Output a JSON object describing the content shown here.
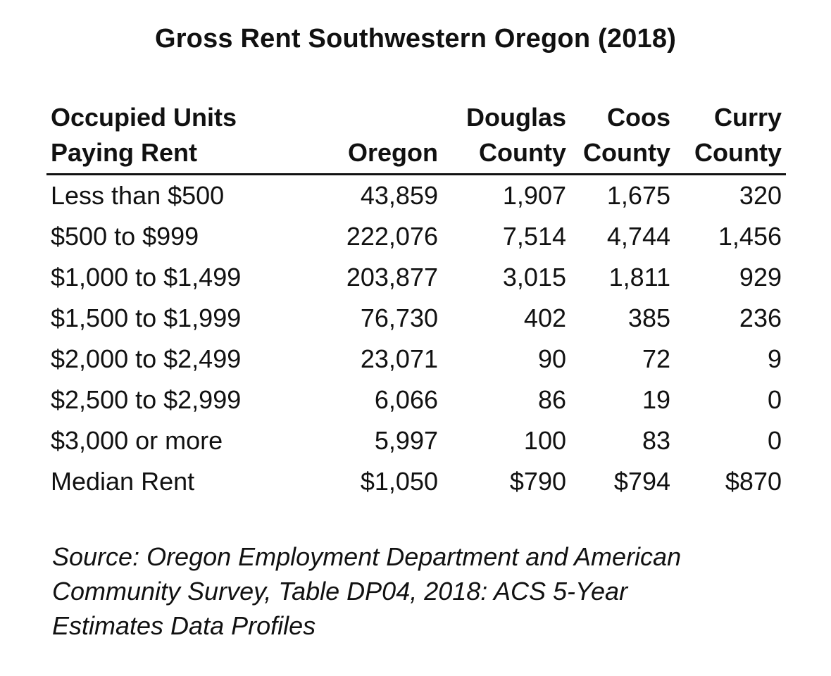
{
  "title": "Gross Rent Southwestern Oregon (2018)",
  "chart_data": {
    "type": "table",
    "title": "Gross Rent Southwestern Oregon (2018)",
    "header": [
      {
        "line1": "Occupied Units",
        "line2": "Paying Rent"
      },
      {
        "line1": "",
        "line2": "Oregon"
      },
      {
        "line1": "Douglas",
        "line2": "County"
      },
      {
        "line1": "Coos",
        "line2": "County"
      },
      {
        "line1": "Curry",
        "line2": "County"
      }
    ],
    "rows": [
      {
        "label": "Less than $500",
        "values": [
          "43,859",
          "1,907",
          "1,675",
          "320"
        ]
      },
      {
        "label": "$500 to $999",
        "values": [
          "222,076",
          "7,514",
          "4,744",
          "1,456"
        ]
      },
      {
        "label": "$1,000 to $1,499",
        "values": [
          "203,877",
          "3,015",
          "1,811",
          "929"
        ]
      },
      {
        "label": "$1,500 to $1,999",
        "values": [
          "76,730",
          "402",
          "385",
          "236"
        ]
      },
      {
        "label": "$2,000 to $2,499",
        "values": [
          "23,071",
          "90",
          "72",
          "9"
        ]
      },
      {
        "label": "$2,500 to $2,999",
        "values": [
          "6,066",
          "86",
          "19",
          "0"
        ]
      },
      {
        "label": "$3,000 or more",
        "values": [
          "5,997",
          "100",
          "83",
          "0"
        ]
      },
      {
        "label": "Median Rent",
        "values": [
          "$1,050",
          "$790",
          "$794",
          "$870"
        ]
      }
    ]
  },
  "source": "Source:  Oregon Employment Department and American\nCommunity Survey, Table DP04, 2018: ACS 5-Year\nEstimates Data Profiles"
}
